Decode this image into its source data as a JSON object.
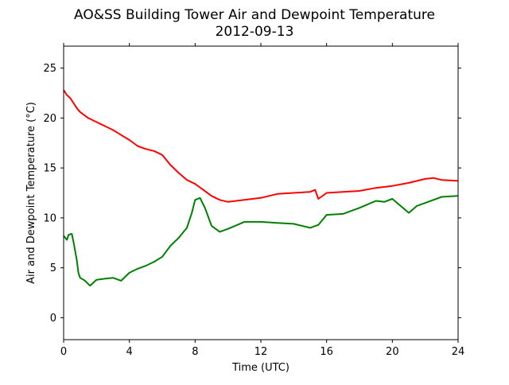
{
  "chart_data": {
    "type": "line",
    "title": "AO&SS Building Tower Air and Dewpoint Temperature",
    "subtitle": "2012-09-13",
    "xlabel": "Time (UTC)",
    "ylabel": "Air and Dewpoint Temperature (°C)",
    "xlim": [
      0,
      24
    ],
    "ylim": [
      -2.2,
      27.2
    ],
    "x_ticks": [
      0,
      4,
      8,
      12,
      16,
      20,
      24
    ],
    "y_ticks": [
      0,
      5,
      10,
      15,
      20,
      25
    ],
    "grid": false,
    "legend": "none",
    "series": [
      {
        "color": "#ff0000",
        "x": [
          0,
          0.2,
          0.4,
          0.6,
          0.8,
          1.0,
          1.5,
          2.0,
          2.5,
          3.0,
          3.5,
          4.0,
          4.5,
          5.0,
          5.5,
          6.0,
          6.5,
          7.0,
          7.5,
          8.0,
          8.5,
          9.0,
          9.5,
          10.0,
          11.0,
          12.0,
          13.0,
          14.0,
          15.0,
          15.3,
          15.5,
          16.0,
          17.0,
          18.0,
          19.0,
          20.0,
          21.0,
          22.0,
          22.5,
          23.0,
          24.0
        ],
        "values": [
          22.8,
          22.3,
          22.0,
          21.5,
          21.0,
          20.6,
          20.0,
          19.6,
          19.2,
          18.8,
          18.3,
          17.8,
          17.2,
          16.9,
          16.7,
          16.3,
          15.3,
          14.5,
          13.8,
          13.4,
          12.8,
          12.2,
          11.8,
          11.6,
          11.8,
          12.0,
          12.4,
          12.5,
          12.6,
          12.8,
          11.9,
          12.5,
          12.6,
          12.7,
          13.0,
          13.2,
          13.5,
          13.9,
          14.0,
          13.8,
          13.7
        ]
      },
      {
        "color": "#008000",
        "x": [
          0,
          0.2,
          0.3,
          0.5,
          0.6,
          0.8,
          0.9,
          1.0,
          1.3,
          1.6,
          2.0,
          2.5,
          3.0,
          3.5,
          4.0,
          4.5,
          5.0,
          5.5,
          6.0,
          6.5,
          7.0,
          7.5,
          7.8,
          8.0,
          8.3,
          8.6,
          9.0,
          9.5,
          10.0,
          11.0,
          12.0,
          13.0,
          14.0,
          15.0,
          15.5,
          16.0,
          17.0,
          18.0,
          19.0,
          19.5,
          20.0,
          21.0,
          21.5,
          22.0,
          23.0,
          24.0
        ],
        "values": [
          8.2,
          7.8,
          8.3,
          8.4,
          7.6,
          5.8,
          4.5,
          4.0,
          3.7,
          3.2,
          3.8,
          3.9,
          4.0,
          3.7,
          4.5,
          4.9,
          5.2,
          5.6,
          6.1,
          7.2,
          8.0,
          9.0,
          10.5,
          11.8,
          12.0,
          11.0,
          9.2,
          8.6,
          8.9,
          9.6,
          9.6,
          9.5,
          9.4,
          9.0,
          9.3,
          10.3,
          10.4,
          11.0,
          11.7,
          11.6,
          11.9,
          10.5,
          11.2,
          11.5,
          12.1,
          12.2
        ]
      }
    ]
  }
}
